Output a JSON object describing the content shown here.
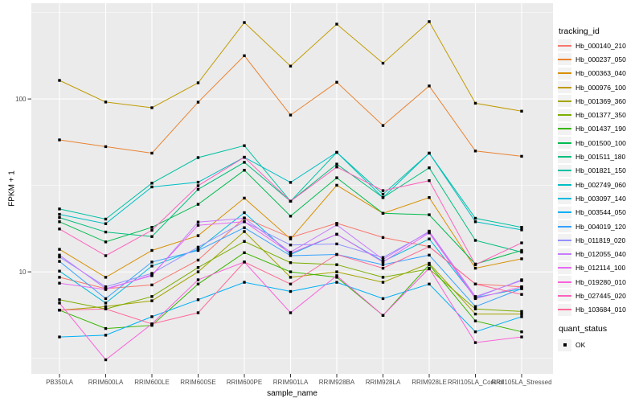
{
  "chart_data": {
    "type": "line",
    "xlabel": "sample_name",
    "ylabel": "FPKM + 1",
    "y_scale": "log10",
    "ylim": [
      2.57,
      358
    ],
    "y_major_ticks": [
      {
        "label": "10",
        "value": 10
      },
      {
        "label": "100",
        "value": 100
      }
    ],
    "y_minor_ticks": [
      3.162,
      31.62,
      316.2
    ],
    "grid": "major-and-minor-white-on-gray",
    "legend_position": "right",
    "categories": [
      "PB350LA",
      "RRIM600LA",
      "RRIM600LE",
      "RRIM600SE",
      "RRIM600PE",
      "RRIM901LA",
      "RRIM928BA",
      "RRIM928LA",
      "RRIM928LE",
      "RRII105LA_Control",
      "RRII105LA_Stressed"
    ],
    "legend": {
      "title": "tracking_id",
      "quant_title": "quant_status",
      "quant_label": "OK"
    },
    "point_shape": "filled-square",
    "point_color": "#000000",
    "series": [
      {
        "name": "Hb_000140_210",
        "color": "#F8766D",
        "values": [
          9.3,
          8.0,
          8.4,
          11.7,
          20.5,
          15.8,
          19.1,
          15.8,
          14.0,
          8.5,
          8.2
        ]
      },
      {
        "name": "Hb_000237_050",
        "color": "#EA8331",
        "values": [
          58,
          53,
          48.6,
          95.8,
          178,
          80.7,
          125,
          70.2,
          119,
          50,
          46.6
        ]
      },
      {
        "name": "Hb_000363_040",
        "color": "#D89000",
        "values": [
          13.5,
          9.3,
          13.3,
          16.2,
          26.7,
          15.5,
          31.7,
          21.8,
          26.9,
          10.5,
          11.9
        ]
      },
      {
        "name": "Hb_000976_100",
        "color": "#C09B00",
        "values": [
          128,
          96,
          89,
          124,
          277,
          155,
          271,
          161,
          280,
          94.5,
          85
        ]
      },
      {
        "name": "Hb_001369_360",
        "color": "#A3A500",
        "values": [
          6.0,
          6.3,
          6.8,
          10.0,
          17.1,
          9.3,
          10.0,
          8.7,
          11.2,
          5.7,
          5.7
        ]
      },
      {
        "name": "Hb_001377_350",
        "color": "#7CAE00",
        "values": [
          6.9,
          6.1,
          7.2,
          10.6,
          15.0,
          11.3,
          11.0,
          9.3,
          10.4,
          6.1,
          5.9
        ]
      },
      {
        "name": "Hb_001437_190",
        "color": "#39B600",
        "values": [
          6.0,
          4.7,
          4.9,
          8.5,
          12.9,
          10.0,
          9.3,
          5.6,
          11.0,
          5.2,
          4.5
        ]
      },
      {
        "name": "Hb_001500_100",
        "color": "#00BB4E",
        "values": [
          19.5,
          14.9,
          18.1,
          24.6,
          38.7,
          21.0,
          35.0,
          21.8,
          21.4,
          11.1,
          13.3
        ]
      },
      {
        "name": "Hb_001511_180",
        "color": "#00BF7D",
        "values": [
          20.6,
          17.0,
          16.0,
          30.0,
          43.0,
          25.6,
          42.0,
          26.9,
          40.0,
          15.2,
          13.0
        ]
      },
      {
        "name": "Hb_001821_150",
        "color": "#00C1A3",
        "values": [
          23.1,
          20.2,
          32.6,
          45.8,
          53.7,
          25.6,
          49.1,
          28.1,
          48.6,
          20.4,
          18.1
        ]
      },
      {
        "name": "Hb_002749_060",
        "color": "#00BFC4",
        "values": [
          21.5,
          19.0,
          31.0,
          33.0,
          46.0,
          32.9,
          49.1,
          26.9,
          48.6,
          19.5,
          17.5
        ]
      },
      {
        "name": "Hb_003097_140",
        "color": "#00BAE0",
        "values": [
          10.1,
          6.6,
          10.8,
          13.5,
          22.0,
          12.6,
          16.5,
          11.5,
          15.5,
          7.1,
          8.0
        ]
      },
      {
        "name": "Hb_003544_050",
        "color": "#00B0F6",
        "values": [
          4.2,
          4.3,
          5.5,
          6.9,
          8.7,
          7.7,
          8.7,
          7.0,
          8.5,
          4.5,
          5.5
        ]
      },
      {
        "name": "Hb_004019_120",
        "color": "#35A2FF",
        "values": [
          11.5,
          7.0,
          11.4,
          13.3,
          18.0,
          12.4,
          12.6,
          11.0,
          12.5,
          6.3,
          8.0
        ]
      },
      {
        "name": "Hb_011819_020",
        "color": "#9590FF",
        "values": [
          12.2,
          8.2,
          9.8,
          13.9,
          19.5,
          14.3,
          14.5,
          12.1,
          17.0,
          7.1,
          9.0
        ]
      },
      {
        "name": "Hb_012055_040",
        "color": "#C77CFF",
        "values": [
          12.5,
          8.0,
          9.5,
          19.4,
          20.4,
          13.0,
          18.7,
          11.8,
          17.2,
          7.2,
          8.9
        ]
      },
      {
        "name": "Hb_012114_100",
        "color": "#E76BF3",
        "values": [
          8.6,
          7.9,
          9.6,
          18.6,
          19.5,
          12.8,
          16.5,
          11.4,
          16.8,
          7.0,
          8.2
        ]
      },
      {
        "name": "Hb_019280_010",
        "color": "#FA62DB",
        "values": [
          6.6,
          3.1,
          5.0,
          9.0,
          11.4,
          5.8,
          9.5,
          5.6,
          10.5,
          3.9,
          4.2
        ]
      },
      {
        "name": "Hb_027445_020",
        "color": "#FF62BC",
        "values": [
          17.7,
          12.4,
          17.4,
          31.5,
          46.0,
          25.6,
          40.4,
          29.5,
          33.7,
          11.0,
          14.7
        ]
      },
      {
        "name": "Hb_103684_010",
        "color": "#FF6A98",
        "values": [
          6.0,
          6.1,
          5.0,
          5.8,
          11.4,
          8.5,
          12.6,
          10.5,
          14.0,
          8.5,
          7.4
        ]
      }
    ]
  },
  "colors": {
    "panel_background": "#EBEBEB",
    "grid_line": "#FFFFFF",
    "tick_label": "#4D4D4D",
    "tick_mark": "#333333",
    "axis_title": "#000000",
    "legend_key_background": "#F2F2F2",
    "point": "#000000"
  }
}
